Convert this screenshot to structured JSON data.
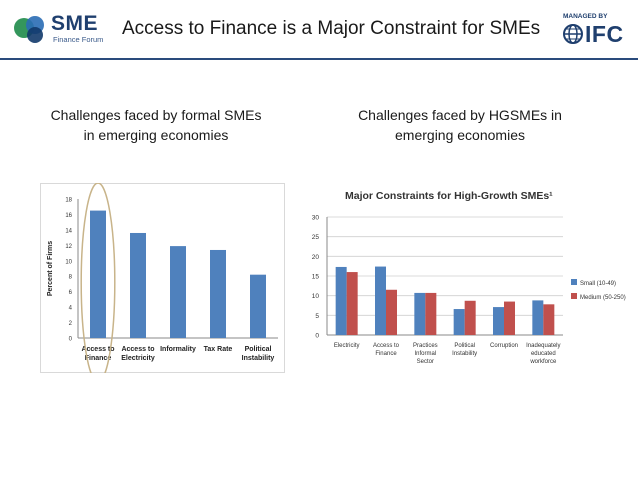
{
  "header": {
    "logo_left": {
      "word": "SME",
      "subtitle": "Finance Forum",
      "colors": [
        "#1e8b4a",
        "#2a6db5",
        "#123a6b"
      ]
    },
    "title": "Access to Finance is a Major Constraint for SMEs",
    "logo_right": {
      "managed": "MANAGED BY",
      "word": "IFC",
      "icon": "globe-icon"
    },
    "rule_color": "#2a4b7c"
  },
  "left": {
    "caption": "Challenges faced by formal SMEs in emerging economies"
  },
  "right": {
    "caption": "Challenges faced by HGSMEs in emerging economies"
  },
  "chart_data": [
    {
      "type": "bar",
      "categories": [
        "Access to Finance",
        "Access to Electricity",
        "Informality",
        "Tax Rate",
        "Political Instability"
      ],
      "series": [
        {
          "values": [
            16.5,
            13.6,
            11.9,
            11.4,
            8.2
          ],
          "color": "#4f81bd"
        }
      ],
      "ylabel": "Percent of Firms",
      "ylim": [
        0,
        18
      ],
      "yticks": [
        0,
        2,
        4,
        6,
        8,
        10,
        12,
        14,
        16,
        18
      ],
      "highlight": {
        "category": "Access to Finance",
        "shape": "ellipse",
        "color": "#c8b48a"
      },
      "grid": false
    },
    {
      "type": "bar",
      "title": "Major Constraints for High-Growth SMEs¹",
      "categories": [
        "Electricity",
        "Access to Finance",
        "Practices Informal Sector",
        "Political Instability",
        "Corruption",
        "Inadequately educated workforce"
      ],
      "series": [
        {
          "name": "Small (10-49)",
          "values": [
            17.3,
            17.4,
            10.7,
            6.6,
            7.1,
            8.8
          ],
          "color": "#4f81bd"
        },
        {
          "name": "Medium (50-250)",
          "values": [
            16.0,
            11.5,
            10.7,
            8.7,
            8.5,
            7.8
          ],
          "color": "#c0504d"
        }
      ],
      "ylim": [
        0,
        30
      ],
      "yticks": [
        0,
        5,
        10,
        15,
        20,
        25,
        30
      ],
      "grid": true,
      "legend": "right"
    }
  ]
}
